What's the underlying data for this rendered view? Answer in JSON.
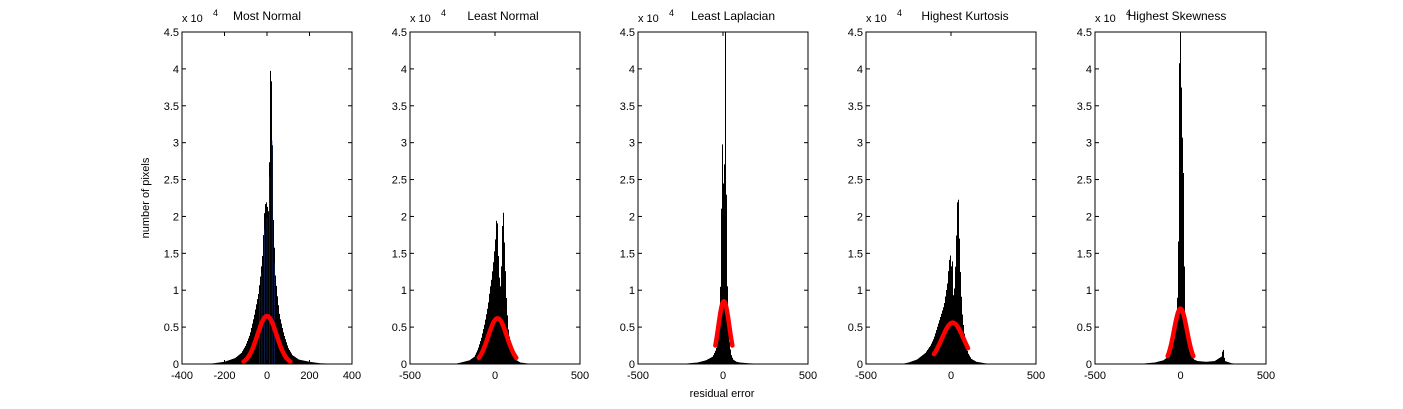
{
  "chart_data": [
    {
      "type": "histogram",
      "title": "Most Normal",
      "ylabel": "number of pixels",
      "xlabel": "",
      "y_multiplier": "x 10",
      "y_exponent": "4",
      "xlim": [
        -400,
        400
      ],
      "ylim": [
        0,
        4.5
      ],
      "x_ticks": [
        -400,
        -200,
        0,
        200,
        400
      ],
      "y_ticks": [
        0,
        0.5,
        1,
        1.5,
        2,
        2.5,
        3,
        3.5,
        4,
        4.5
      ],
      "colors": {
        "bars": "#000000",
        "fit": "#ff0000",
        "inner": "#1f3a93"
      },
      "histogram": {
        "x": [
          -250,
          -200,
          -150,
          -120,
          -100,
          -80,
          -60,
          -40,
          -30,
          -20,
          -15,
          -10,
          -5,
          0,
          5,
          10,
          15,
          18,
          20,
          22,
          25,
          28,
          30,
          35,
          40,
          50,
          60,
          80,
          100,
          120,
          150,
          200,
          250,
          300
        ],
        "values": [
          0.01,
          0.03,
          0.08,
          0.15,
          0.25,
          0.4,
          0.65,
          0.95,
          1.2,
          1.5,
          1.85,
          2.15,
          2.18,
          2.2,
          2.05,
          2.1,
          3.9,
          4.05,
          4.02,
          3.7,
          3.2,
          2.4,
          2.0,
          1.6,
          1.2,
          0.9,
          0.65,
          0.4,
          0.22,
          0.12,
          0.06,
          0.03,
          0.01,
          0.005
        ]
      },
      "fit": {
        "mean": 0,
        "sigma": 45,
        "peak": 0.65,
        "x_range": [
          -110,
          110
        ]
      }
    },
    {
      "type": "histogram",
      "title": "Least Normal",
      "xlabel": "",
      "y_multiplier": "x 10",
      "y_exponent": "4",
      "xlim": [
        -500,
        500
      ],
      "ylim": [
        0,
        4.5
      ],
      "x_ticks": [
        -500,
        0,
        500
      ],
      "y_ticks": [
        0,
        0.5,
        1,
        1.5,
        2,
        2.5,
        3,
        3.5,
        4,
        4.5
      ],
      "colors": {
        "bars": "#000000",
        "fit": "#ff0000"
      },
      "histogram": {
        "x": [
          -200,
          -150,
          -120,
          -100,
          -80,
          -60,
          -40,
          -30,
          -20,
          -10,
          0,
          5,
          10,
          15,
          20,
          25,
          30,
          35,
          40,
          45,
          50,
          55,
          60,
          65,
          70,
          75,
          80,
          90,
          100,
          120,
          150,
          200
        ],
        "values": [
          0.02,
          0.05,
          0.1,
          0.2,
          0.35,
          0.55,
          0.8,
          1.0,
          1.15,
          1.35,
          1.6,
          1.75,
          2.0,
          1.9,
          1.5,
          1.2,
          1.1,
          1.0,
          1.5,
          1.95,
          2.05,
          1.7,
          1.4,
          1.0,
          0.8,
          0.6,
          0.45,
          0.3,
          0.15,
          0.06,
          0.02,
          0.005
        ]
      },
      "fit": {
        "mean": 15,
        "sigma": 55,
        "peak": 0.62,
        "x_range": [
          -95,
          125
        ]
      }
    },
    {
      "type": "histogram",
      "title": "Least Laplacian",
      "xlabel": "residual error",
      "y_multiplier": "x 10",
      "y_exponent": "4",
      "xlim": [
        -500,
        500
      ],
      "ylim": [
        0,
        4.5
      ],
      "x_ticks": [
        -500,
        0,
        500
      ],
      "y_ticks": [
        0,
        0.5,
        1,
        1.5,
        2,
        2.5,
        3,
        3.5,
        4,
        4.5
      ],
      "colors": {
        "bars": "#000000",
        "fit": "#ff0000"
      },
      "histogram": {
        "x": [
          -200,
          -150,
          -100,
          -60,
          -40,
          -30,
          -20,
          -15,
          -10,
          -5,
          0,
          5,
          8,
          10,
          12,
          15,
          18,
          20,
          22,
          25,
          30,
          35,
          40,
          50,
          60,
          80,
          100,
          150,
          200
        ],
        "values": [
          0.01,
          0.02,
          0.05,
          0.1,
          0.2,
          0.3,
          0.6,
          1.0,
          1.8,
          3.1,
          2.8,
          2.2,
          1.8,
          4.0,
          4.5,
          4.5,
          3.5,
          2.5,
          1.8,
          1.2,
          0.7,
          0.4,
          0.25,
          0.12,
          0.06,
          0.03,
          0.02,
          0.01,
          0.005
        ]
      },
      "fit": {
        "mean": 5,
        "sigma": 32,
        "peak": 0.85,
        "x_range": [
          -45,
          55
        ]
      }
    },
    {
      "type": "histogram",
      "title": "Highest Kurtosis",
      "xlabel": "",
      "y_multiplier": "x 10",
      "y_exponent": "4",
      "xlim": [
        -500,
        500
      ],
      "ylim": [
        0,
        4.5
      ],
      "x_ticks": [
        -500,
        0,
        500
      ],
      "y_ticks": [
        0,
        0.5,
        1,
        1.5,
        2,
        2.5,
        3,
        3.5,
        4,
        4.5
      ],
      "colors": {
        "bars": "#000000",
        "fit": "#ff0000"
      },
      "histogram": {
        "x": [
          -250,
          -200,
          -150,
          -120,
          -100,
          -80,
          -60,
          -40,
          -30,
          -20,
          -10,
          0,
          5,
          10,
          15,
          20,
          25,
          30,
          35,
          40,
          45,
          50,
          55,
          60,
          65,
          70,
          80,
          90,
          100,
          120,
          150,
          200
        ],
        "values": [
          0.02,
          0.06,
          0.15,
          0.25,
          0.35,
          0.5,
          0.65,
          0.8,
          0.95,
          1.1,
          1.4,
          1.5,
          1.2,
          1.45,
          0.9,
          1.0,
          1.2,
          1.6,
          1.9,
          2.35,
          2.2,
          1.7,
          1.3,
          1.0,
          0.75,
          0.6,
          0.4,
          0.25,
          0.15,
          0.07,
          0.03,
          0.01
        ]
      },
      "fit": {
        "mean": 10,
        "sigma": 65,
        "peak": 0.56,
        "x_range": [
          -100,
          100
        ]
      }
    },
    {
      "type": "histogram",
      "title": "Highest Skewness",
      "xlabel": "",
      "y_multiplier": "x 10",
      "y_exponent": "4",
      "xlim": [
        -500,
        500
      ],
      "ylim": [
        0,
        4.5
      ],
      "x_ticks": [
        -500,
        0,
        500
      ],
      "y_ticks": [
        0,
        0.5,
        1,
        1.5,
        2,
        2.5,
        3,
        3.5,
        4,
        4.5
      ],
      "colors": {
        "bars": "#000000",
        "fit": "#ff0000"
      },
      "histogram": {
        "x": [
          -200,
          -150,
          -100,
          -70,
          -50,
          -35,
          -25,
          -15,
          -10,
          -5,
          0,
          5,
          10,
          15,
          20,
          25,
          30,
          40,
          50,
          60,
          80,
          100,
          150,
          200,
          240,
          250,
          255,
          260,
          300
        ],
        "values": [
          0.01,
          0.02,
          0.05,
          0.1,
          0.2,
          0.35,
          0.6,
          1.0,
          2.0,
          4.5,
          4.5,
          3.9,
          3.0,
          3.2,
          2.0,
          1.0,
          0.6,
          0.35,
          0.2,
          0.12,
          0.06,
          0.04,
          0.03,
          0.04,
          0.1,
          0.22,
          0.12,
          0.04,
          0.01
        ]
      },
      "fit": {
        "mean": 0,
        "sigma": 38,
        "peak": 0.75,
        "x_range": [
          -75,
          75
        ]
      }
    }
  ]
}
